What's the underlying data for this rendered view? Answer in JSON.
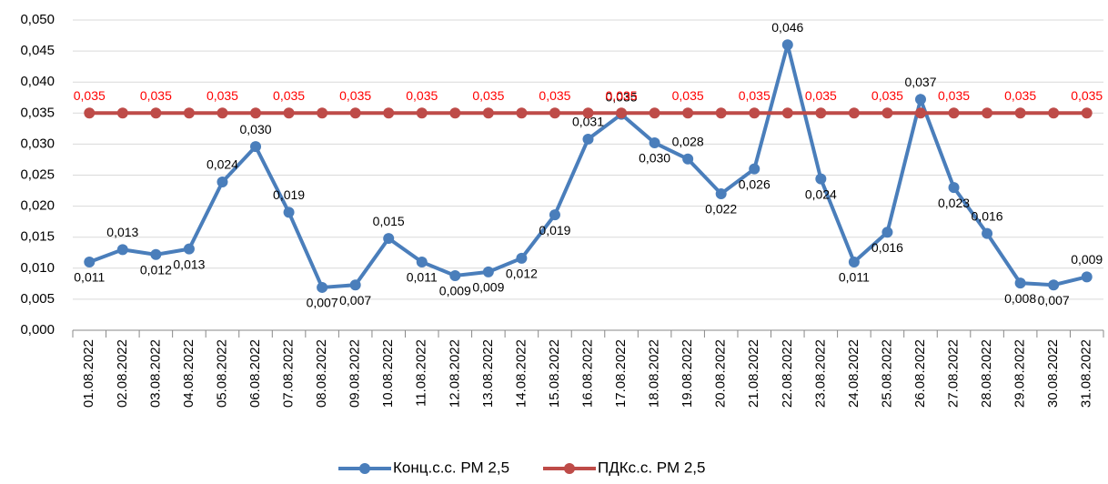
{
  "chart_data": {
    "type": "line",
    "categories": [
      "01.08.2022",
      "02.08.2022",
      "03.08.2022",
      "04.08.2022",
      "05.08.2022",
      "06.08.2022",
      "07.08.2022",
      "08.08.2022",
      "09.08.2022",
      "10.08.2022",
      "11.08.2022",
      "12.08.2022",
      "13.08.2022",
      "14.08.2022",
      "15.08.2022",
      "16.08.2022",
      "17.08.2022",
      "18.08.2022",
      "19.08.2022",
      "20.08.2022",
      "21.08.2022",
      "22.08.2022",
      "23.08.2022",
      "24.08.2022",
      "25.08.2022",
      "26.08.2022",
      "27.08.2022",
      "28.08.2022",
      "29.08.2022",
      "30.08.2022",
      "31.08.2022"
    ],
    "series": [
      {
        "name": "Конц.с.с. РМ 2,5",
        "color": "#4a7ebb",
        "values": [
          0.011,
          0.013,
          0.0122,
          0.0131,
          0.0239,
          0.0296,
          0.019,
          0.0069,
          0.0073,
          0.0148,
          0.011,
          0.0088,
          0.0094,
          0.0116,
          0.0186,
          0.0308,
          0.0348,
          0.0302,
          0.0276,
          0.022,
          0.026,
          0.046,
          0.0244,
          0.011,
          0.0158,
          0.0372,
          0.023,
          0.0156,
          0.0076,
          0.0073,
          0.0086
        ],
        "value_labels": [
          "0,011",
          "0,013",
          "0,012",
          "0,013",
          "0,024",
          "0,030",
          "0,019",
          "0,007",
          "0,007",
          "0,015",
          "0,011",
          "0,009",
          "0,009",
          "0,012",
          "0,019",
          "0,031",
          "0,035",
          "0,030",
          "0,028",
          "0,022",
          "0,026",
          "0,046",
          "0,024",
          "0,011",
          "0,016",
          "0,037",
          "0,023",
          "0,016",
          "0,008",
          "0,007",
          "0,009"
        ]
      },
      {
        "name": "ПДКс.с. РМ 2,5",
        "color": "#be4b48",
        "values": [
          0.035,
          0.035,
          0.035,
          0.035,
          0.035,
          0.035,
          0.035,
          0.035,
          0.035,
          0.035,
          0.035,
          0.035,
          0.035,
          0.035,
          0.035,
          0.035,
          0.035,
          0.035,
          0.035,
          0.035,
          0.035,
          0.035,
          0.035,
          0.035,
          0.035,
          0.035,
          0.035,
          0.035,
          0.035,
          0.035,
          0.035
        ],
        "value_labels": [
          "0,035",
          null,
          "0,035",
          null,
          "0,035",
          null,
          "0,035",
          null,
          "0,035",
          null,
          "0,035",
          null,
          "0,035",
          null,
          "0,035",
          null,
          "0,035",
          null,
          "0,035",
          null,
          "0,035",
          null,
          "0,035",
          null,
          "0,035",
          null,
          "0,035",
          null,
          "0,035",
          null,
          "0,035"
        ]
      }
    ],
    "ylim": [
      0,
      0.05
    ],
    "yticks": [
      {
        "value": 0,
        "label": "0,000"
      },
      {
        "value": 0.005,
        "label": "0,005"
      },
      {
        "value": 0.01,
        "label": "0,010"
      },
      {
        "value": 0.015,
        "label": "0,015"
      },
      {
        "value": 0.02,
        "label": "0,020"
      },
      {
        "value": 0.025,
        "label": "0,025"
      },
      {
        "value": 0.03,
        "label": "0,030"
      },
      {
        "value": 0.035,
        "label": "0,035"
      },
      {
        "value": 0.04,
        "label": "0,040"
      },
      {
        "value": 0.045,
        "label": "0,045"
      },
      {
        "value": 0.05,
        "label": "0,050"
      }
    ],
    "grid": true,
    "legend": "bottom"
  }
}
